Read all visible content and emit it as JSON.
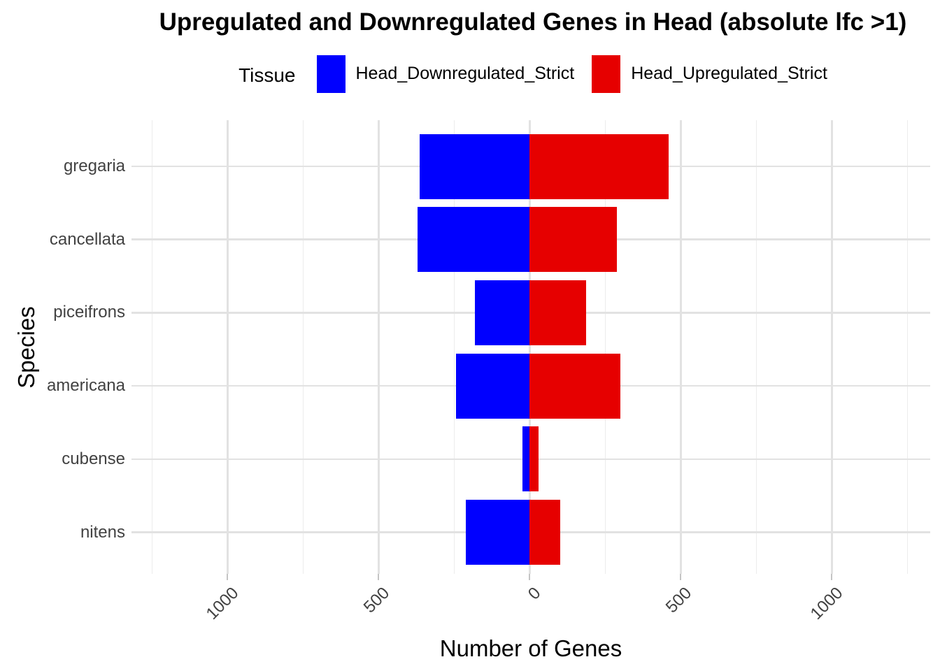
{
  "title": "Upregulated and Downregulated Genes in Head (absolute lfc >1)",
  "legend": {
    "title": "Tissue",
    "position": "top",
    "items": [
      {
        "label": "Head_Downregulated_Strict",
        "color": "#0000FF"
      },
      {
        "label": "Head_Upregulated_Strict",
        "color": "#E60000"
      }
    ]
  },
  "chart_data": {
    "type": "bar",
    "variant": "diverging-horizontal",
    "title": "Upregulated and Downregulated Genes in Head (absolute lfc >1)",
    "xlabel": "Number of Genes",
    "ylabel": "Species",
    "categories": [
      "gregaria",
      "cancellata",
      "piceifrons",
      "americana",
      "cubense",
      "nitens"
    ],
    "series": [
      {
        "name": "Head_Downregulated_Strict",
        "color": "#0000FF",
        "direction": "negative",
        "values": [
          363,
          370,
          182,
          243,
          24,
          211
        ]
      },
      {
        "name": "Head_Upregulated_Strict",
        "color": "#E60000",
        "direction": "positive",
        "values": [
          460,
          288,
          186,
          300,
          29,
          101
        ]
      }
    ],
    "xlim": [
      -1318,
      1325
    ],
    "x_major_ticks": [
      {
        "value": -1000,
        "label": "1000"
      },
      {
        "value": -500,
        "label": "500"
      },
      {
        "value": 0,
        "label": "0"
      },
      {
        "value": 500,
        "label": "500"
      },
      {
        "value": 1000,
        "label": "1000"
      }
    ],
    "x_minor_ticks": [
      -1250,
      -750,
      -250,
      250,
      750,
      1250
    ],
    "grid": true,
    "background": "#FFFFFF",
    "colors": {
      "grid_major": "#E2E2E2",
      "grid_minor": "#ECECEC",
      "tick_label": "#424242",
      "text": "#000000"
    }
  }
}
